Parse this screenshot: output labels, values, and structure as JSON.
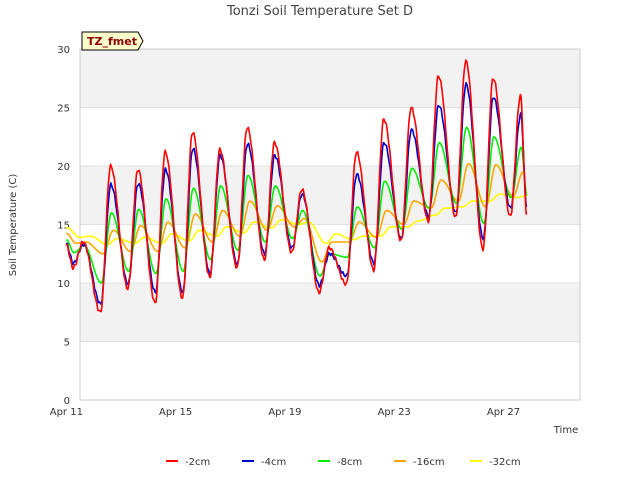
{
  "chart_data": {
    "type": "line",
    "title": "Tonzi Soil Temperature Set D",
    "xlabel": "Time",
    "ylabel": "Soil Temperature (C)",
    "tag": "TZ_fmet",
    "ylim": [
      0,
      30
    ],
    "xlim": [
      0.5,
      18.8
    ],
    "yticks": [
      0,
      5,
      10,
      15,
      20,
      25,
      30
    ],
    "yticklabels": [
      "0",
      "5",
      "10",
      "15",
      "20",
      "25",
      "30"
    ],
    "xticks": [
      0,
      4,
      8,
      12,
      16
    ],
    "xticklabels": [
      "Apr 11",
      "Apr 15",
      "Apr 19",
      "Apr 23",
      "Apr 27"
    ],
    "legend_position": "bottom",
    "daily_max": {
      "-2cm": [
        13.5,
        20.0,
        19.7,
        21.2,
        22.9,
        21.4,
        23.3,
        22.0,
        18.0,
        13.0,
        21.2,
        24.0,
        25.0,
        27.7,
        29.0,
        27.5,
        26.0
      ],
      "-4cm": [
        13.3,
        18.4,
        18.5,
        19.7,
        21.5,
        20.9,
        21.9,
        20.9,
        17.6,
        12.5,
        19.3,
        22.0,
        23.1,
        25.2,
        27.0,
        25.9,
        24.4
      ],
      "-8cm": [
        13.2,
        16.0,
        16.3,
        17.2,
        18.1,
        18.3,
        19.2,
        18.3,
        16.2,
        12.5,
        16.5,
        18.7,
        19.8,
        22.0,
        23.3,
        22.5,
        21.6
      ],
      "-16cm": [
        13.5,
        14.5,
        14.9,
        15.2,
        15.9,
        16.2,
        17.0,
        16.6,
        15.5,
        13.5,
        15.2,
        16.2,
        17.0,
        18.8,
        20.2,
        20.1,
        19.5
      ],
      "-32cm": [
        14.0,
        13.8,
        13.9,
        14.2,
        14.5,
        14.8,
        15.2,
        15.4,
        15.2,
        14.2,
        14.0,
        14.8,
        15.3,
        16.4,
        17.0,
        17.6,
        17.5
      ]
    },
    "daily_min": {
      "-2cm": [
        11.3,
        7.5,
        9.5,
        8.3,
        8.7,
        10.5,
        11.3,
        12.0,
        12.6,
        9.2,
        9.9,
        11.1,
        13.6,
        15.3,
        15.6,
        12.9,
        15.7
      ],
      "-4cm": [
        11.7,
        8.2,
        9.9,
        9.2,
        9.2,
        10.8,
        11.6,
        12.5,
        13.0,
        9.8,
        10.6,
        11.7,
        13.8,
        15.7,
        16.0,
        13.8,
        16.4
      ],
      "-8cm": [
        12.6,
        10.0,
        11.0,
        10.8,
        11.0,
        12.0,
        12.8,
        13.5,
        13.8,
        10.6,
        12.2,
        13.0,
        14.6,
        16.4,
        16.8,
        15.1,
        17.3
      ],
      "-16cm": [
        13.4,
        12.5,
        12.7,
        12.7,
        13.0,
        13.5,
        14.0,
        14.5,
        14.8,
        11.8,
        13.5,
        13.9,
        15.0,
        16.4,
        17.0,
        16.5,
        17.4
      ],
      "-32cm": [
        13.9,
        13.3,
        13.4,
        13.4,
        13.6,
        14.0,
        14.3,
        14.7,
        15.0,
        13.4,
        13.7,
        14.0,
        14.8,
        15.8,
        16.5,
        17.0,
        17.3
      ]
    },
    "series": [
      {
        "name": "-2cm",
        "color": "#ff0000"
      },
      {
        "name": "-4cm",
        "color": "#0000cc"
      },
      {
        "name": "-8cm",
        "color": "#00ee00"
      },
      {
        "name": "-16cm",
        "color": "#ffa500"
      },
      {
        "name": "-32cm",
        "color": "#ffff00"
      }
    ]
  }
}
